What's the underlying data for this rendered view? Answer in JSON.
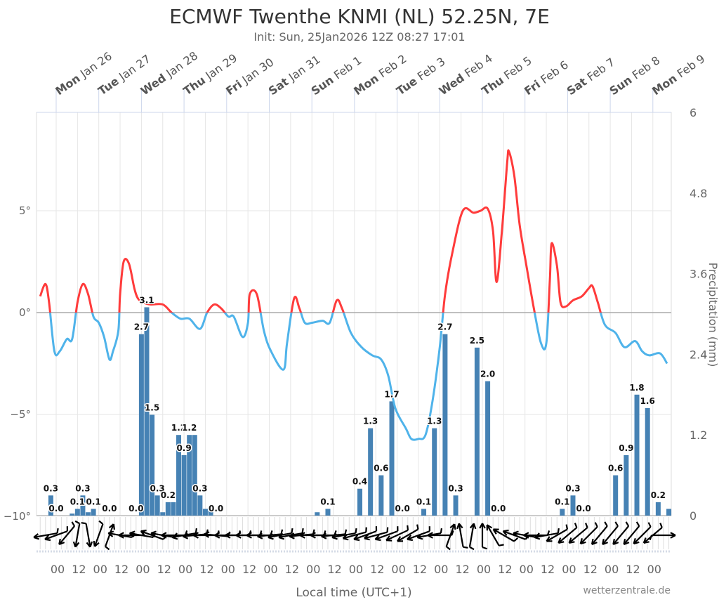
{
  "chart_data": {
    "type": "bar+line",
    "title": "ECMWF Twenthe KNMI (NL) 52.25N, 7E",
    "subtitle": "Init: Sun, 25Jan2026 12Z 08:27 17:01",
    "xlabel": "Local time (UTC+1)",
    "ylabel_right": "Precipitation (mm)",
    "credit": "wetterzentrale.de",
    "x_range": [
      "2026-01-25T13",
      "2026-02-09T10"
    ],
    "top_axis_days": [
      {
        "t": "2026-01-26T00",
        "wd": "Mon",
        "date": "Jan 26"
      },
      {
        "t": "2026-01-27T00",
        "wd": "Tue",
        "date": "Jan 27"
      },
      {
        "t": "2026-01-28T00",
        "wd": "Wed",
        "date": "Jan 28"
      },
      {
        "t": "2026-01-29T00",
        "wd": "Thu",
        "date": "Jan 29"
      },
      {
        "t": "2026-01-30T00",
        "wd": "Fri",
        "date": "Jan 30"
      },
      {
        "t": "2026-01-31T00",
        "wd": "Sat",
        "date": "Jan 31"
      },
      {
        "t": "2026-02-01T00",
        "wd": "Sun",
        "date": "Feb 1"
      },
      {
        "t": "2026-02-02T00",
        "wd": "Mon",
        "date": "Feb 2"
      },
      {
        "t": "2026-02-03T00",
        "wd": "Tue",
        "date": "Feb 3"
      },
      {
        "t": "2026-02-04T00",
        "wd": "Wed",
        "date": "Feb 4"
      },
      {
        "t": "2026-02-05T00",
        "wd": "Thu",
        "date": "Feb 5"
      },
      {
        "t": "2026-02-06T00",
        "wd": "Fri",
        "date": "Feb 6"
      },
      {
        "t": "2026-02-07T00",
        "wd": "Sat",
        "date": "Feb 7"
      },
      {
        "t": "2026-02-08T00",
        "wd": "Sun",
        "date": "Feb 8"
      },
      {
        "t": "2026-02-09T00",
        "wd": "Mon",
        "date": "Feb 9"
      }
    ],
    "bottom_tick_labels": [
      "00",
      "12"
    ],
    "y_left": {
      "unit": "°",
      "range": [
        -10,
        10
      ],
      "ticks": [
        {
          "v": 5,
          "label": "5°"
        },
        {
          "v": 0,
          "label": "0°"
        },
        {
          "v": -5,
          "label": "−5°"
        },
        {
          "v": -10,
          "label": "−10°"
        }
      ]
    },
    "y_right": {
      "unit": "mm",
      "range": [
        0,
        6
      ],
      "ticks": [
        {
          "v": 6,
          "label": "6"
        },
        {
          "v": 4.8,
          "label": "4.8"
        },
        {
          "v": 3.6,
          "label": "3.6"
        },
        {
          "v": 2.4,
          "label": "2.4"
        },
        {
          "v": 1.2,
          "label": "1.2"
        },
        {
          "v": 0,
          "label": "0"
        }
      ]
    },
    "colors": {
      "temp_above_zero": "#ff3b3b",
      "temp_below_zero": "#4fb3ea",
      "precip": "#4682b4",
      "zero_line": "#aaaaaa",
      "grid": "#e6e6e6",
      "day_tick": "#ccd6eb",
      "wind": "#000000"
    },
    "precipitation": [
      {
        "t": "2026-01-25T21",
        "v": 0.3,
        "label": "0.3"
      },
      {
        "t": "2026-01-26T00",
        "v": 0.0,
        "label": "0.0"
      },
      {
        "t": "2026-01-26T09",
        "v": 0.03
      },
      {
        "t": "2026-01-26T12",
        "v": 0.1,
        "label": "0.1"
      },
      {
        "t": "2026-01-26T15",
        "v": 0.3,
        "label": "0.3"
      },
      {
        "t": "2026-01-26T18",
        "v": 0.05
      },
      {
        "t": "2026-01-26T21",
        "v": 0.1,
        "label": "0.1"
      },
      {
        "t": "2026-01-27T06",
        "v": 0.0,
        "label": "0.0"
      },
      {
        "t": "2026-01-27T21",
        "v": 0.0,
        "label": "0.0"
      },
      {
        "t": "2026-01-28T00",
        "v": 2.7,
        "label": "2.7"
      },
      {
        "t": "2026-01-28T03",
        "v": 3.1,
        "label": "3.1"
      },
      {
        "t": "2026-01-28T06",
        "v": 1.5,
        "label": "1.5"
      },
      {
        "t": "2026-01-28T09",
        "v": 0.3,
        "label": "0.3"
      },
      {
        "t": "2026-01-28T12",
        "v": 0.05
      },
      {
        "t": "2026-01-28T15",
        "v": 0.2,
        "label": "0.2"
      },
      {
        "t": "2026-01-28T18",
        "v": 0.2
      },
      {
        "t": "2026-01-28T21",
        "v": 1.2,
        "label": "1.2"
      },
      {
        "t": "2026-01-29T00",
        "v": 0.9,
        "label": "0.9"
      },
      {
        "t": "2026-01-29T03",
        "v": 1.2,
        "label": "1.2"
      },
      {
        "t": "2026-01-29T06",
        "v": 1.2
      },
      {
        "t": "2026-01-29T09",
        "v": 0.3,
        "label": "0.3"
      },
      {
        "t": "2026-01-29T12",
        "v": 0.1
      },
      {
        "t": "2026-01-29T15",
        "v": 0.1
      },
      {
        "t": "2026-01-29T18",
        "v": 0.0,
        "label": "0.0"
      },
      {
        "t": "2026-02-01T03",
        "v": 0.05
      },
      {
        "t": "2026-02-01T09",
        "v": 0.1,
        "label": "0.1"
      },
      {
        "t": "2026-02-02T03",
        "v": 0.4,
        "label": "0.4"
      },
      {
        "t": "2026-02-02T09",
        "v": 1.3,
        "label": "1.3"
      },
      {
        "t": "2026-02-02T15",
        "v": 0.6,
        "label": "0.6"
      },
      {
        "t": "2026-02-02T21",
        "v": 1.7,
        "label": "1.7"
      },
      {
        "t": "2026-02-03T03",
        "v": 0.0,
        "label": "0.0"
      },
      {
        "t": "2026-02-03T15",
        "v": 0.1,
        "label": "0.1"
      },
      {
        "t": "2026-02-03T21",
        "v": 1.3,
        "label": "1.3"
      },
      {
        "t": "2026-02-04T03",
        "v": 2.7,
        "label": "2.7"
      },
      {
        "t": "2026-02-04T09",
        "v": 0.3,
        "label": "0.3"
      },
      {
        "t": "2026-02-04T21",
        "v": 2.5,
        "label": "2.5"
      },
      {
        "t": "2026-02-05T03",
        "v": 2.0,
        "label": "2.0"
      },
      {
        "t": "2026-02-05T09",
        "v": 0.0,
        "label": "0.0"
      },
      {
        "t": "2026-02-06T21",
        "v": 0.1,
        "label": "0.1"
      },
      {
        "t": "2026-02-07T03",
        "v": 0.3,
        "label": "0.3"
      },
      {
        "t": "2026-02-07T09",
        "v": 0.0,
        "label": "0.0"
      },
      {
        "t": "2026-02-08T03",
        "v": 0.6,
        "label": "0.6"
      },
      {
        "t": "2026-02-08T09",
        "v": 0.9,
        "label": "0.9"
      },
      {
        "t": "2026-02-08T15",
        "v": 1.8,
        "label": "1.8"
      },
      {
        "t": "2026-02-08T21",
        "v": 1.6,
        "label": "1.6"
      },
      {
        "t": "2026-02-09T03",
        "v": 0.2,
        "label": "0.2"
      },
      {
        "t": "2026-02-09T09",
        "v": 0.1
      }
    ],
    "temperature": [
      [
        "2026-01-25T15",
        0.8
      ],
      [
        "2026-01-25T18",
        1.4
      ],
      [
        "2026-01-25T20",
        0.5
      ],
      [
        "2026-01-25T23",
        -1.9
      ],
      [
        "2026-01-26T02",
        -1.9
      ],
      [
        "2026-01-26T06",
        -1.3
      ],
      [
        "2026-01-26T09",
        -1.3
      ],
      [
        "2026-01-26T12",
        0.5
      ],
      [
        "2026-01-26T15",
        1.4
      ],
      [
        "2026-01-26T18",
        0.9
      ],
      [
        "2026-01-26T21",
        -0.2
      ],
      [
        "2026-01-27T00",
        -0.5
      ],
      [
        "2026-01-27T03",
        -1.2
      ],
      [
        "2026-01-27T06",
        -2.3
      ],
      [
        "2026-01-27T08",
        -1.9
      ],
      [
        "2026-01-27T11",
        -0.9
      ],
      [
        "2026-01-27T12",
        0.9
      ],
      [
        "2026-01-27T14",
        2.5
      ],
      [
        "2026-01-27T17",
        2.4
      ],
      [
        "2026-01-27T20",
        1.2
      ],
      [
        "2026-01-27T22",
        0.7
      ],
      [
        "2026-01-28T01",
        0.5
      ],
      [
        "2026-01-28T05",
        0.4
      ],
      [
        "2026-01-28T12",
        0.4
      ],
      [
        "2026-01-28T17",
        0.0
      ],
      [
        "2026-01-28T22",
        -0.3
      ],
      [
        "2026-01-29T03",
        -0.3
      ],
      [
        "2026-01-29T09",
        -0.8
      ],
      [
        "2026-01-29T13",
        0.0
      ],
      [
        "2026-01-29T17",
        0.4
      ],
      [
        "2026-01-29T21",
        0.2
      ],
      [
        "2026-01-30T01",
        -0.2
      ],
      [
        "2026-01-30T04",
        -0.2
      ],
      [
        "2026-01-30T09",
        -1.2
      ],
      [
        "2026-01-30T12",
        -0.5
      ],
      [
        "2026-01-30T13",
        0.9
      ],
      [
        "2026-01-30T17",
        0.9
      ],
      [
        "2026-01-30T21",
        -0.9
      ],
      [
        "2026-01-31T01",
        -1.9
      ],
      [
        "2026-01-31T08",
        -2.8
      ],
      [
        "2026-01-31T10",
        -1.5
      ],
      [
        "2026-01-31T14",
        0.7
      ],
      [
        "2026-01-31T17",
        0.2
      ],
      [
        "2026-01-31T20",
        -0.5
      ],
      [
        "2026-02-01T00",
        -0.5
      ],
      [
        "2026-02-01T06",
        -0.4
      ],
      [
        "2026-02-01T10",
        -0.5
      ],
      [
        "2026-02-01T14",
        0.6
      ],
      [
        "2026-02-01T17",
        0.2
      ],
      [
        "2026-02-01T22",
        -1.0
      ],
      [
        "2026-02-02T04",
        -1.7
      ],
      [
        "2026-02-02T10",
        -2.1
      ],
      [
        "2026-02-02T15",
        -2.3
      ],
      [
        "2026-02-02T19",
        -3.1
      ],
      [
        "2026-02-02T23",
        -4.7
      ],
      [
        "2026-02-03T05",
        -5.7
      ],
      [
        "2026-02-03T08",
        -6.2
      ],
      [
        "2026-02-03T12",
        -6.2
      ],
      [
        "2026-02-03T16",
        -6.0
      ],
      [
        "2026-02-03T20",
        -4.3
      ],
      [
        "2026-02-04T00",
        -1.7
      ],
      [
        "2026-02-04T03",
        0.9
      ],
      [
        "2026-02-04T07",
        2.9
      ],
      [
        "2026-02-04T13",
        5.0
      ],
      [
        "2026-02-04T19",
        4.9
      ],
      [
        "2026-02-04T23",
        5.0
      ],
      [
        "2026-02-05T03",
        5.1
      ],
      [
        "2026-02-05T06",
        4.0
      ],
      [
        "2026-02-05T08",
        1.5
      ],
      [
        "2026-02-05T11",
        4.0
      ],
      [
        "2026-02-05T14",
        7.4
      ],
      [
        "2026-02-05T15",
        7.9
      ],
      [
        "2026-02-05T18",
        6.7
      ],
      [
        "2026-02-05T21",
        4.3
      ],
      [
        "2026-02-06T01",
        2.2
      ],
      [
        "2026-02-06T05",
        0.2
      ],
      [
        "2026-02-06T09",
        -1.5
      ],
      [
        "2026-02-06T12",
        -1.5
      ],
      [
        "2026-02-06T14",
        1.6
      ],
      [
        "2026-02-06T15",
        3.4
      ],
      [
        "2026-02-06T18",
        2.3
      ],
      [
        "2026-02-06T20",
        0.5
      ],
      [
        "2026-02-06T23",
        0.3
      ],
      [
        "2026-02-07T03",
        0.6
      ],
      [
        "2026-02-07T08",
        0.8
      ],
      [
        "2026-02-07T12",
        1.2
      ],
      [
        "2026-02-07T14",
        1.3
      ],
      [
        "2026-02-07T17",
        0.5
      ],
      [
        "2026-02-07T21",
        -0.6
      ],
      [
        "2026-02-08T03",
        -1.0
      ],
      [
        "2026-02-08T08",
        -1.7
      ],
      [
        "2026-02-08T14",
        -1.4
      ],
      [
        "2026-02-08T18",
        -1.9
      ],
      [
        "2026-02-08T22",
        -2.1
      ],
      [
        "2026-02-09T04",
        -2.0
      ],
      [
        "2026-02-09T08",
        -2.5
      ]
    ],
    "wind_direction_deg": [
      [
        "2026-01-25T18",
        80
      ],
      [
        "2026-01-26T00",
        70
      ],
      [
        "2026-01-26T06",
        40
      ],
      [
        "2026-01-26T12",
        10
      ],
      [
        "2026-01-26T18",
        350
      ],
      [
        "2026-01-27T00",
        20
      ],
      [
        "2026-01-27T06",
        200
      ],
      [
        "2026-01-27T12",
        100
      ],
      [
        "2026-01-27T18",
        90
      ],
      [
        "2026-01-28T00",
        100
      ],
      [
        "2026-01-28T06",
        110
      ],
      [
        "2026-01-28T12",
        100
      ],
      [
        "2026-01-28T18",
        90
      ],
      [
        "2026-01-29T00",
        80
      ],
      [
        "2026-01-29T06",
        85
      ],
      [
        "2026-01-29T12",
        90
      ],
      [
        "2026-01-29T18",
        95
      ],
      [
        "2026-01-30T00",
        90
      ],
      [
        "2026-01-30T06",
        90
      ],
      [
        "2026-01-30T12",
        90
      ],
      [
        "2026-01-30T18",
        90
      ],
      [
        "2026-01-31T00",
        85
      ],
      [
        "2026-01-31T06",
        80
      ],
      [
        "2026-01-31T12",
        80
      ],
      [
        "2026-01-31T18",
        85
      ],
      [
        "2026-02-01T00",
        90
      ],
      [
        "2026-02-01T06",
        90
      ],
      [
        "2026-02-01T12",
        85
      ],
      [
        "2026-02-01T18",
        80
      ],
      [
        "2026-02-02T00",
        75
      ],
      [
        "2026-02-02T06",
        70
      ],
      [
        "2026-02-02T12",
        75
      ],
      [
        "2026-02-02T18",
        70
      ],
      [
        "2026-02-03T00",
        65
      ],
      [
        "2026-02-03T06",
        60
      ],
      [
        "2026-02-03T12",
        70
      ],
      [
        "2026-02-03T18",
        80
      ],
      [
        "2026-02-04T00",
        90
      ],
      [
        "2026-02-04T06",
        200
      ],
      [
        "2026-02-04T12",
        170
      ],
      [
        "2026-02-04T18",
        190
      ],
      [
        "2026-02-05T00",
        180
      ],
      [
        "2026-02-05T06",
        150
      ],
      [
        "2026-02-05T12",
        120
      ],
      [
        "2026-02-05T18",
        110
      ],
      [
        "2026-02-06T00",
        100
      ],
      [
        "2026-02-06T06",
        90
      ],
      [
        "2026-02-06T12",
        80
      ],
      [
        "2026-02-06T18",
        60
      ],
      [
        "2026-02-07T00",
        50
      ],
      [
        "2026-02-07T06",
        50
      ],
      [
        "2026-02-07T12",
        45
      ],
      [
        "2026-02-07T18",
        40
      ],
      [
        "2026-02-08T00",
        40
      ],
      [
        "2026-02-08T06",
        40
      ],
      [
        "2026-02-08T12",
        40
      ],
      [
        "2026-02-08T18",
        45
      ],
      [
        "2026-02-09T00",
        50
      ],
      [
        "2026-02-09T06",
        270
      ]
    ]
  }
}
